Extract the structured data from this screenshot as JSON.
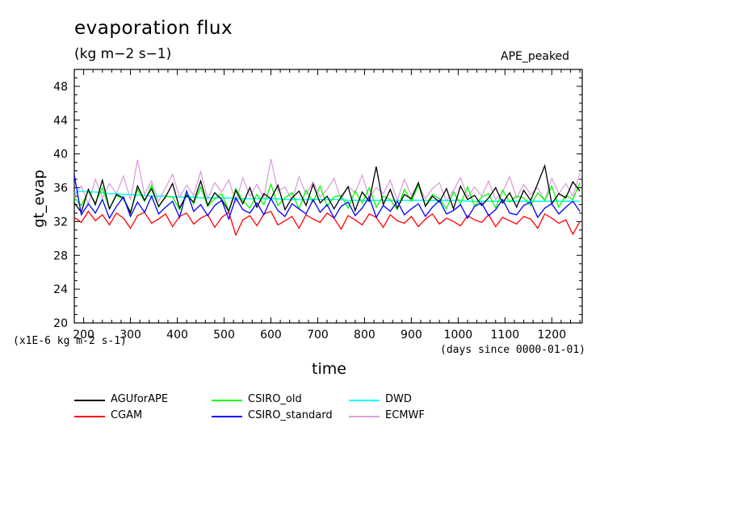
{
  "header": {
    "title": "evaporation flux",
    "units": "(kg m−2 s−1)",
    "experiment": "APE_peaked"
  },
  "axes": {
    "ylabel": "gt_evap",
    "xlabel": "time",
    "y_scale_note": "(x1E-6 kg m-2 s-1)",
    "x_units_note": "(days since 0000-01-01)"
  },
  "colors": {
    "AGUforAPE": "#000000",
    "CGAM": "#ff0000",
    "CSIRO_old": "#00ff00",
    "CSIRO_standard": "#0000ff",
    "DWD": "#00ffff",
    "ECMWF": "#dda0dd"
  },
  "chart_data": {
    "type": "line",
    "title": "evaporation flux",
    "xlabel": "time",
    "ylabel": "gt_evap",
    "xlim": [
      180,
      1265
    ],
    "ylim": [
      20,
      50
    ],
    "x_ticks": [
      200,
      300,
      400,
      500,
      600,
      700,
      800,
      900,
      1000,
      1100,
      1200
    ],
    "y_ticks": [
      20,
      24,
      28,
      32,
      36,
      40,
      44,
      48
    ],
    "grid": false,
    "legend_position": "bottom",
    "series": [
      {
        "name": "AGUforAPE",
        "color": "#000000",
        "x_start": 180,
        "x_step": 15,
        "values": [
          34.2,
          33.1,
          35.8,
          34.0,
          36.9,
          33.5,
          35.2,
          34.8,
          33.0,
          36.2,
          34.5,
          35.9,
          33.8,
          34.9,
          36.5,
          33.6,
          35.1,
          34.3,
          36.8,
          33.9,
          35.4,
          34.6,
          33.2,
          35.7,
          34.1,
          36.0,
          33.7,
          35.3,
          34.7,
          36.3,
          33.4,
          34.8,
          35.6,
          33.9,
          36.4,
          34.2,
          35.0,
          33.5,
          34.9,
          36.1,
          33.3,
          35.5,
          34.4,
          38.5,
          34.0,
          35.8,
          33.6,
          35.2,
          34.7,
          36.6,
          33.8,
          35.0,
          34.3,
          35.9,
          33.5,
          36.2,
          34.6,
          35.1,
          33.9,
          34.8,
          36.0,
          34.2,
          35.4,
          33.7,
          35.7,
          34.5,
          36.5,
          38.6,
          34.1,
          35.3,
          34.8,
          36.7,
          35.6
        ]
      },
      {
        "name": "CGAM",
        "color": "#ff0000",
        "x_start": 180,
        "x_step": 15,
        "values": [
          32.5,
          31.9,
          33.2,
          32.1,
          32.8,
          31.6,
          33.0,
          32.4,
          31.2,
          32.7,
          33.1,
          31.8,
          32.3,
          32.9,
          31.4,
          32.6,
          33.0,
          31.7,
          32.4,
          32.8,
          31.3,
          32.5,
          33.1,
          30.4,
          32.2,
          32.7,
          31.5,
          32.9,
          33.2,
          31.6,
          32.1,
          32.6,
          31.2,
          32.8,
          32.3,
          31.9,
          33.0,
          32.4,
          31.1,
          32.7,
          32.2,
          31.6,
          32.9,
          32.5,
          31.3,
          32.8,
          32.1,
          31.8,
          32.6,
          31.4,
          32.3,
          32.9,
          31.7,
          32.4,
          32.0,
          31.5,
          32.7,
          32.2,
          31.9,
          32.8,
          31.4,
          32.5,
          32.1,
          31.7,
          32.6,
          32.3,
          31.2,
          32.9,
          32.4,
          31.8,
          32.2,
          30.5,
          32.0
        ]
      },
      {
        "name": "CSIRO_old",
        "color": "#00ff00",
        "x_start": 180,
        "x_step": 15,
        "values": [
          34.8,
          33.9,
          35.6,
          34.2,
          36.0,
          33.5,
          35.1,
          34.6,
          33.2,
          35.8,
          34.4,
          36.3,
          33.7,
          35.0,
          34.9,
          33.4,
          35.5,
          34.1,
          36.1,
          33.8,
          34.7,
          35.3,
          33.3,
          35.9,
          34.5,
          33.6,
          35.2,
          34.0,
          36.4,
          33.9,
          34.8,
          35.4,
          33.5,
          35.7,
          34.3,
          36.2,
          33.8,
          34.9,
          35.1,
          33.6,
          35.6,
          34.2,
          36.0,
          33.7,
          35.0,
          34.6,
          33.4,
          35.8,
          34.4,
          36.3,
          33.9,
          35.2,
          34.7,
          33.5,
          35.5,
          34.1,
          36.1,
          33.8,
          34.9,
          35.3,
          33.6,
          35.7,
          34.3,
          35.0,
          34.8,
          33.9,
          35.4,
          34.5,
          36.2,
          33.7,
          35.1,
          34.6,
          36.6
        ]
      },
      {
        "name": "CSIRO_standard",
        "color": "#0000ff",
        "x_start": 180,
        "x_step": 15,
        "values": [
          37.5,
          32.8,
          34.1,
          33.0,
          34.6,
          32.4,
          33.8,
          34.9,
          32.6,
          34.3,
          33.1,
          35.0,
          32.9,
          33.7,
          34.4,
          32.5,
          35.6,
          33.2,
          34.0,
          32.7,
          33.9,
          34.5,
          32.3,
          34.8,
          33.4,
          33.0,
          34.2,
          32.8,
          34.7,
          33.3,
          32.6,
          34.1,
          33.5,
          32.9,
          34.6,
          33.1,
          34.0,
          32.4,
          33.8,
          34.3,
          32.7,
          33.6,
          34.9,
          32.5,
          33.9,
          33.2,
          34.4,
          32.8,
          33.5,
          34.1,
          32.6,
          33.7,
          34.5,
          32.9,
          33.3,
          34.0,
          32.4,
          33.8,
          34.2,
          32.7,
          33.4,
          34.6,
          33.0,
          32.8,
          33.9,
          34.3,
          32.5,
          33.6,
          34.1,
          32.9,
          33.7,
          34.4,
          33.2
        ]
      },
      {
        "name": "DWD",
        "color": "#00ffff",
        "x_start": 180,
        "x_step": 15,
        "values": [
          35.4,
          35.6,
          35.5,
          35.5,
          35.4,
          35.3,
          35.3,
          35.2,
          35.2,
          35.1,
          35.1,
          35.0,
          35.0,
          35.0,
          34.9,
          34.9,
          34.9,
          34.9,
          34.8,
          34.8,
          34.8,
          34.8,
          34.8,
          34.7,
          34.7,
          34.7,
          34.7,
          34.7,
          34.7,
          34.7,
          34.6,
          34.6,
          34.6,
          34.6,
          34.6,
          34.6,
          34.6,
          34.6,
          34.6,
          34.5,
          34.5,
          34.5,
          34.5,
          34.5,
          34.5,
          34.5,
          34.5,
          34.5,
          34.5,
          34.5,
          34.5,
          34.5,
          34.5,
          34.5,
          34.5,
          34.5,
          34.4,
          34.4,
          34.4,
          34.4,
          34.4,
          34.4,
          34.4,
          34.4,
          34.4,
          34.4,
          34.4,
          34.4,
          34.4,
          34.4,
          34.4,
          34.4,
          34.4
        ]
      },
      {
        "name": "ECMWF",
        "color": "#dda0dd",
        "x_start": 180,
        "x_step": 15,
        "values": [
          35.0,
          36.2,
          34.1,
          37.0,
          34.8,
          36.5,
          35.3,
          37.4,
          34.6,
          39.3,
          35.2,
          36.8,
          34.4,
          36.0,
          37.6,
          34.9,
          36.3,
          35.1,
          37.9,
          34.7,
          36.6,
          35.5,
          36.9,
          34.3,
          37.2,
          35.0,
          36.4,
          34.8,
          39.4,
          35.6,
          36.1,
          34.5,
          37.3,
          35.2,
          36.7,
          34.9,
          35.8,
          37.1,
          34.6,
          36.2,
          35.4,
          37.5,
          34.8,
          36.0,
          35.3,
          36.9,
          34.5,
          37.0,
          35.1,
          36.3,
          34.7,
          35.9,
          36.6,
          34.4,
          35.7,
          37.2,
          34.9,
          36.1,
          35.0,
          36.8,
          34.6,
          35.5,
          37.3,
          34.8,
          36.4,
          35.2,
          36.0,
          34.5,
          37.1,
          35.3,
          36.5,
          35.0,
          37.7
        ]
      }
    ]
  }
}
